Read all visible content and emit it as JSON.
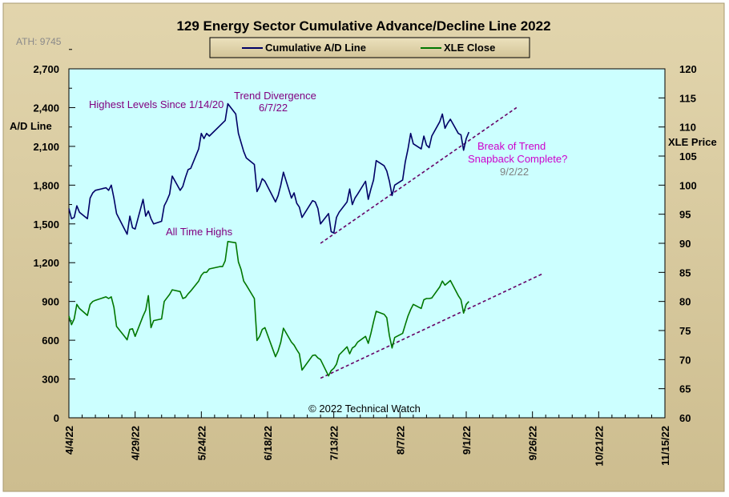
{
  "chart_data": {
    "type": "line",
    "title": "129 Energy Sector Cumulative Advance/Decline Line 2022",
    "watermark": "ATH: 9745",
    "copyright": "© 2022 Technical Watch",
    "ylabel_left": "A/D Line",
    "ylabel_right": "XLE Price",
    "ylim_left": [
      0,
      2700
    ],
    "ylim_right": [
      60,
      120
    ],
    "yticks_left": [
      "0",
      "300",
      "600",
      "900",
      "1,200",
      "1,500",
      "1,800",
      "2,100",
      "2,400",
      "2,700"
    ],
    "yticks_right": [
      "60",
      "65",
      "70",
      "75",
      "80",
      "85",
      "90",
      "95",
      "100",
      "105",
      "110",
      "115",
      "120"
    ],
    "xticks": [
      "4/4/22",
      "4/29/22",
      "5/24/22",
      "6/18/22",
      "7/13/22",
      "8/7/22",
      "9/1/22",
      "9/26/22",
      "10/21/22",
      "11/15/22"
    ],
    "grid": false,
    "legend_position": "top-center",
    "colors": {
      "background": "#d6c79c",
      "plot_area": "#ccffff",
      "ad_line": "#000066",
      "xle_line": "#007700",
      "trendline": "#660066",
      "annotation_purple": "#800080",
      "annotation_magenta": "#cc00cc",
      "annotation_gray": "#808080"
    },
    "series": [
      {
        "name": "Cumulative A/D Line",
        "axis": "left",
        "x": [
          "4/4/22",
          "4/5/22",
          "4/6/22",
          "4/7/22",
          "4/8/22",
          "4/11/22",
          "4/12/22",
          "4/13/22",
          "4/14/22",
          "4/18/22",
          "4/19/22",
          "4/20/22",
          "4/21/22",
          "4/22/22",
          "4/25/22",
          "4/26/22",
          "4/27/22",
          "4/28/22",
          "4/29/22",
          "5/2/22",
          "5/3/22",
          "5/4/22",
          "5/5/22",
          "5/6/22",
          "5/9/22",
          "5/10/22",
          "5/11/22",
          "5/12/22",
          "5/13/22",
          "5/16/22",
          "5/17/22",
          "5/18/22",
          "5/19/22",
          "5/20/22",
          "5/23/22",
          "5/24/22",
          "5/25/22",
          "5/26/22",
          "5/27/22",
          "5/31/22",
          "6/1/22",
          "6/2/22",
          "6/3/22",
          "6/6/22",
          "6/7/22",
          "6/8/22",
          "6/9/22",
          "6/10/22",
          "6/13/22",
          "6/14/22",
          "6/15/22",
          "6/16/22",
          "6/17/22",
          "6/21/22",
          "6/22/22",
          "6/23/22",
          "6/24/22",
          "6/27/22",
          "6/28/22",
          "6/29/22",
          "6/30/22",
          "7/1/22",
          "7/5/22",
          "7/6/22",
          "7/7/22",
          "7/8/22",
          "7/11/22",
          "7/12/22",
          "7/13/22",
          "7/14/22",
          "7/15/22",
          "7/18/22",
          "7/19/22",
          "7/20/22",
          "7/21/22",
          "7/22/22",
          "7/25/22",
          "7/26/22",
          "7/27/22",
          "7/28/22",
          "7/29/22",
          "8/1/22",
          "8/2/22",
          "8/3/22",
          "8/4/22",
          "8/5/22",
          "8/8/22",
          "8/9/22",
          "8/10/22",
          "8/11/22",
          "8/12/22",
          "8/15/22",
          "8/16/22",
          "8/17/22",
          "8/18/22",
          "8/19/22",
          "8/22/22",
          "8/23/22",
          "8/24/22",
          "8/25/22",
          "8/26/22",
          "8/29/22",
          "8/30/22",
          "8/31/22",
          "9/1/22",
          "9/2/22"
        ],
        "values": [
          1620,
          1540,
          1550,
          1640,
          1590,
          1540,
          1700,
          1740,
          1760,
          1780,
          1760,
          1800,
          1700,
          1580,
          1460,
          1420,
          1560,
          1470,
          1460,
          1690,
          1560,
          1600,
          1540,
          1500,
          1520,
          1640,
          1680,
          1730,
          1870,
          1760,
          1790,
          1860,
          1920,
          1930,
          2080,
          2200,
          2160,
          2200,
          2180,
          2260,
          2280,
          2300,
          2430,
          2350,
          2200,
          2130,
          2060,
          2010,
          1960,
          1750,
          1790,
          1850,
          1830,
          1670,
          1720,
          1800,
          1900,
          1700,
          1740,
          1660,
          1630,
          1550,
          1680,
          1670,
          1620,
          1500,
          1580,
          1440,
          1430,
          1550,
          1590,
          1670,
          1770,
          1650,
          1700,
          1730,
          1830,
          1690,
          1770,
          1840,
          1990,
          1950,
          1910,
          1830,
          1720,
          1800,
          1840,
          1980,
          2080,
          2200,
          2120,
          2080,
          2180,
          2110,
          2090,
          2180,
          2290,
          2350,
          2240,
          2280,
          2310,
          2200,
          2190,
          2070,
          2160,
          2210
        ]
      },
      {
        "name": "XLE Close",
        "axis": "right",
        "x": [
          "4/4/22",
          "4/5/22",
          "4/6/22",
          "4/7/22",
          "4/8/22",
          "4/11/22",
          "4/12/22",
          "4/13/22",
          "4/14/22",
          "4/18/22",
          "4/19/22",
          "4/20/22",
          "4/21/22",
          "4/22/22",
          "4/25/22",
          "4/26/22",
          "4/27/22",
          "4/28/22",
          "4/29/22",
          "5/2/22",
          "5/3/22",
          "5/4/22",
          "5/5/22",
          "5/6/22",
          "5/9/22",
          "5/10/22",
          "5/11/22",
          "5/12/22",
          "5/13/22",
          "5/16/22",
          "5/17/22",
          "5/18/22",
          "5/19/22",
          "5/20/22",
          "5/23/22",
          "5/24/22",
          "5/25/22",
          "5/26/22",
          "5/27/22",
          "5/31/22",
          "6/1/22",
          "6/2/22",
          "6/3/22",
          "6/6/22",
          "6/7/22",
          "6/8/22",
          "6/9/22",
          "6/10/22",
          "6/13/22",
          "6/14/22",
          "6/15/22",
          "6/16/22",
          "6/17/22",
          "6/21/22",
          "6/22/22",
          "6/23/22",
          "6/24/22",
          "6/27/22",
          "6/28/22",
          "6/29/22",
          "6/30/22",
          "7/1/22",
          "7/5/22",
          "7/6/22",
          "7/7/22",
          "7/8/22",
          "7/11/22",
          "7/12/22",
          "7/13/22",
          "7/14/22",
          "7/15/22",
          "7/18/22",
          "7/19/22",
          "7/20/22",
          "7/21/22",
          "7/22/22",
          "7/25/22",
          "7/26/22",
          "7/27/22",
          "7/28/22",
          "7/29/22",
          "8/1/22",
          "8/2/22",
          "8/3/22",
          "8/4/22",
          "8/5/22",
          "8/8/22",
          "8/9/22",
          "8/10/22",
          "8/11/22",
          "8/12/22",
          "8/15/22",
          "8/16/22",
          "8/17/22",
          "8/18/22",
          "8/19/22",
          "8/22/22",
          "8/23/22",
          "8/24/22",
          "8/25/22",
          "8/26/22",
          "8/29/22",
          "8/30/22",
          "8/31/22",
          "9/1/22",
          "9/2/22"
        ],
        "values": [
          77.5,
          76,
          77,
          79.5,
          78.8,
          77.6,
          79.5,
          80,
          80.2,
          80.8,
          80.5,
          80.8,
          79,
          75.7,
          74,
          73.4,
          75.2,
          75.3,
          74,
          77.5,
          78.5,
          81,
          75.5,
          76.7,
          77,
          80,
          80.6,
          81.2,
          82,
          81.7,
          80.5,
          80.7,
          81.3,
          81.8,
          83.5,
          84.5,
          85,
          85,
          85.6,
          86,
          86,
          87,
          90.3,
          90.1,
          86.8,
          85.5,
          83.5,
          82.8,
          80.5,
          73.3,
          74,
          75.2,
          75.5,
          70.5,
          71.5,
          73,
          75.4,
          73,
          72.5,
          71.7,
          71,
          68.2,
          70.7,
          70.8,
          70.3,
          70,
          67.2,
          68.1,
          68.5,
          69.2,
          70.8,
          72.2,
          71,
          72,
          72.3,
          73,
          74,
          72.8,
          74.5,
          76.5,
          78.3,
          77.8,
          77.2,
          74.1,
          72,
          73.8,
          74.5,
          76,
          77.5,
          78.6,
          79.5,
          78.8,
          80.3,
          80.5,
          80.5,
          80.6,
          82.5,
          83.5,
          82.8,
          83.2,
          83.6,
          81,
          80.3,
          78,
          79.5,
          80
        ]
      }
    ],
    "trendlines": [
      {
        "axis": "left",
        "x": [
          "7/8/22",
          "9/20/22"
        ],
        "values": [
          1350,
          2400
        ]
      },
      {
        "axis": "right",
        "x": [
          "7/8/22",
          "9/30/22"
        ],
        "values": [
          66.8,
          84.8
        ]
      }
    ],
    "annotations": [
      {
        "text": "Highest Levels Since 1/14/20",
        "color": "annotation_purple"
      },
      {
        "text": "Trend Divergence",
        "color": "annotation_purple"
      },
      {
        "text": "6/7/22",
        "color": "annotation_purple"
      },
      {
        "text": "All Time Highs",
        "color": "annotation_purple"
      },
      {
        "text": "Break of Trend",
        "color": "annotation_magenta"
      },
      {
        "text": "Snapback Complete?",
        "color": "annotation_magenta"
      },
      {
        "text": "9/2/22",
        "color": "annotation_gray"
      }
    ]
  }
}
